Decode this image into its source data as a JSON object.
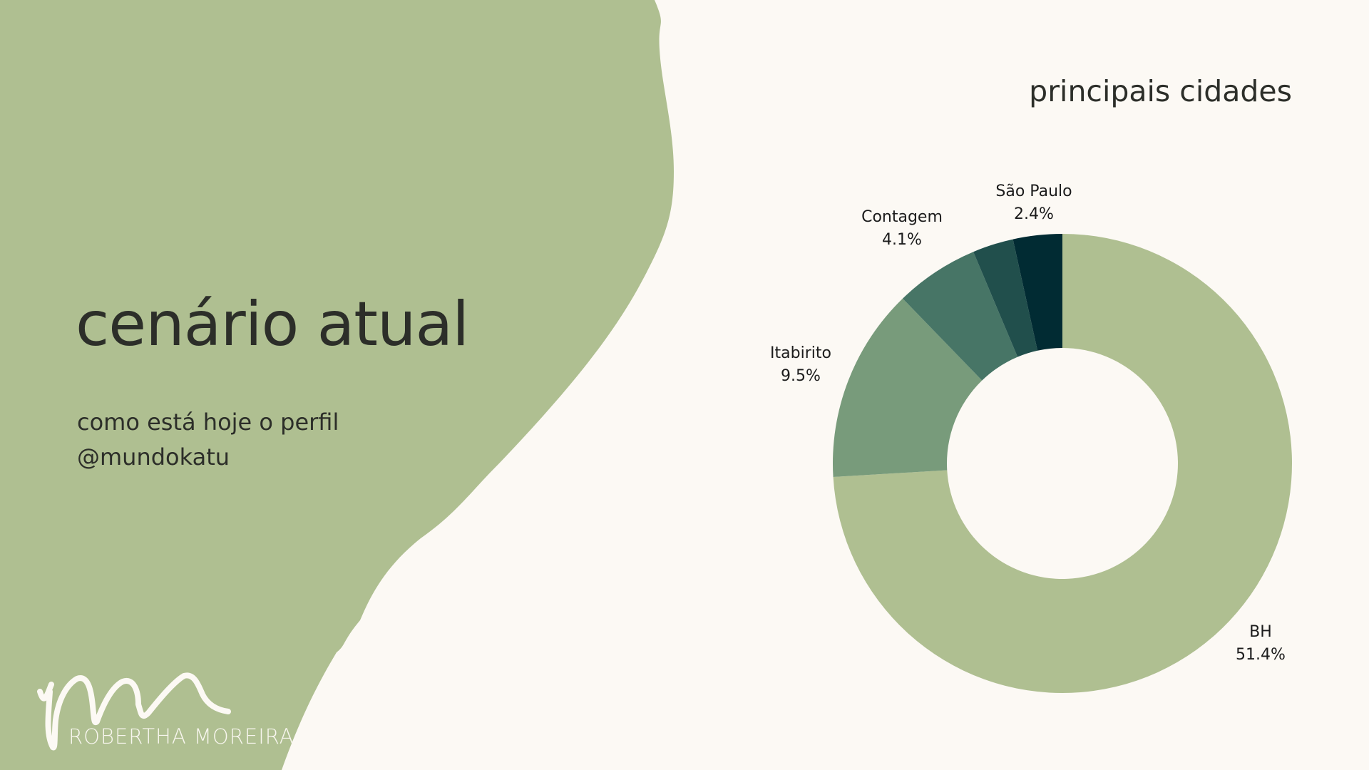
{
  "slide": {
    "title": "cenário atual",
    "subtitle_line1": "como está hoje o perfil",
    "subtitle_line2": "@mundokatu"
  },
  "brand": {
    "name": "ROBERTHA MOREIRA"
  },
  "colors": {
    "background": "#fcf9f4",
    "blob": "#afbf91",
    "text": "#2c2e29"
  },
  "chart_data": {
    "type": "pie",
    "donut": true,
    "title": "principais cidades",
    "series": [
      {
        "label": "BH",
        "value": 51.4,
        "display": "51.4%",
        "color": "#afbf91"
      },
      {
        "label": "Itabirito",
        "value": 9.5,
        "display": "9.5%",
        "color": "#789b7b"
      },
      {
        "label": "Contagem",
        "value": 4.1,
        "display": "4.1%",
        "color": "#477566"
      },
      {
        "label": "",
        "value": 2.0,
        "display": "",
        "color": "#214f4c"
      },
      {
        "label": "São Paulo",
        "value": 2.4,
        "display": "2.4%",
        "color": "#012b33"
      }
    ]
  }
}
